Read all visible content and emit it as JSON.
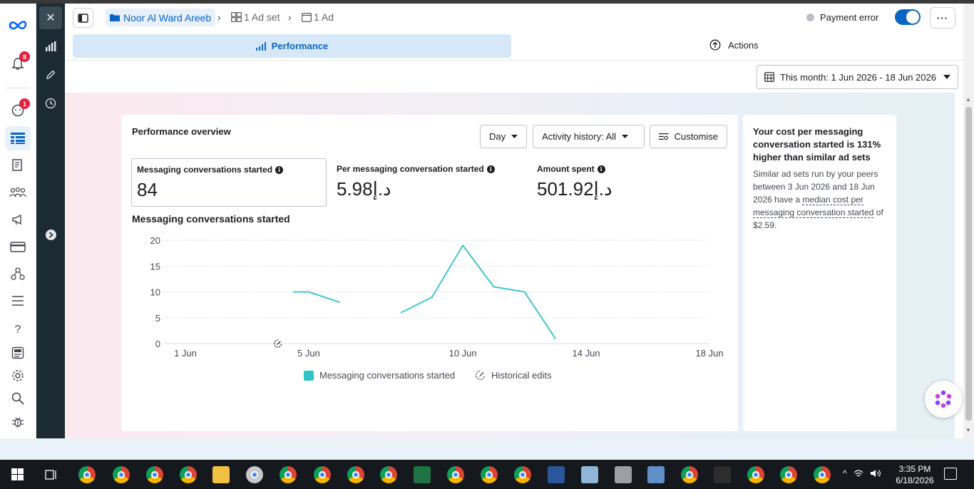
{
  "header": {
    "breadcrumb_campaign": "Noor Al Ward Areeb",
    "breadcrumb_adset": "1 Ad set",
    "breadcrumb_ad": "1 Ad",
    "payment_status": "Payment error",
    "more_label": "···"
  },
  "nav": {
    "notifications_badge": "8",
    "messages_badge": "1"
  },
  "tabs": {
    "performance": "Performance",
    "actions": "Actions"
  },
  "date_range": "This month: 1 Jun 2026 - 18 Jun 2026",
  "overview": {
    "title": "Performance overview",
    "granularity": "Day",
    "activity_filter": "Activity history: All",
    "customise": "Customise",
    "metrics": [
      {
        "label": "Messaging conversations started",
        "value": "84"
      },
      {
        "label": "Per messaging conversation started",
        "value": "5.98د.إ"
      },
      {
        "label": "Amount spent",
        "value": "501.92د.إ"
      }
    ],
    "chart_title": "Messaging conversations started",
    "legend_series": "Messaging conversations started",
    "legend_edits": "Historical edits"
  },
  "chart_data": {
    "type": "line",
    "title": "Messaging conversations started",
    "xlabel": "",
    "ylabel": "",
    "x_tick_labels": [
      "1 Jun",
      "5 Jun",
      "10 Jun",
      "14 Jun",
      "18 Jun"
    ],
    "x_tick_days": [
      1,
      5,
      10,
      14,
      18
    ],
    "y_ticks": [
      0,
      5,
      10,
      15,
      20
    ],
    "xlim": [
      1,
      18
    ],
    "ylim": [
      0,
      20
    ],
    "grid": true,
    "series": [
      {
        "name": "Messaging conversations started",
        "color": "#2ec4c8",
        "segments": [
          [
            [
              4.5,
              10
            ],
            [
              5,
              10
            ],
            [
              6,
              8
            ]
          ],
          [
            [
              8,
              6
            ],
            [
              9,
              9
            ],
            [
              10,
              19
            ],
            [
              11,
              11
            ],
            [
              12,
              10
            ],
            [
              13,
              1
            ]
          ]
        ]
      }
    ],
    "historical_edit_days": [
      4
    ]
  },
  "insight": {
    "heading": "Your cost per messaging conversation started is 131% higher than similar ad sets",
    "body_prefix": "Similar ad sets run by your peers between 3 Jun 2026 and 18 Jun 2026 have a ",
    "body_link": "median cost per messaging conversation started",
    "body_suffix": " of $2.59."
  },
  "taskbar": {
    "time": "3:35 PM",
    "date": "6/18/2026"
  },
  "colors": {
    "accent": "#0a66c2",
    "series": "#2ec4c8",
    "badge": "#e41e3f"
  }
}
